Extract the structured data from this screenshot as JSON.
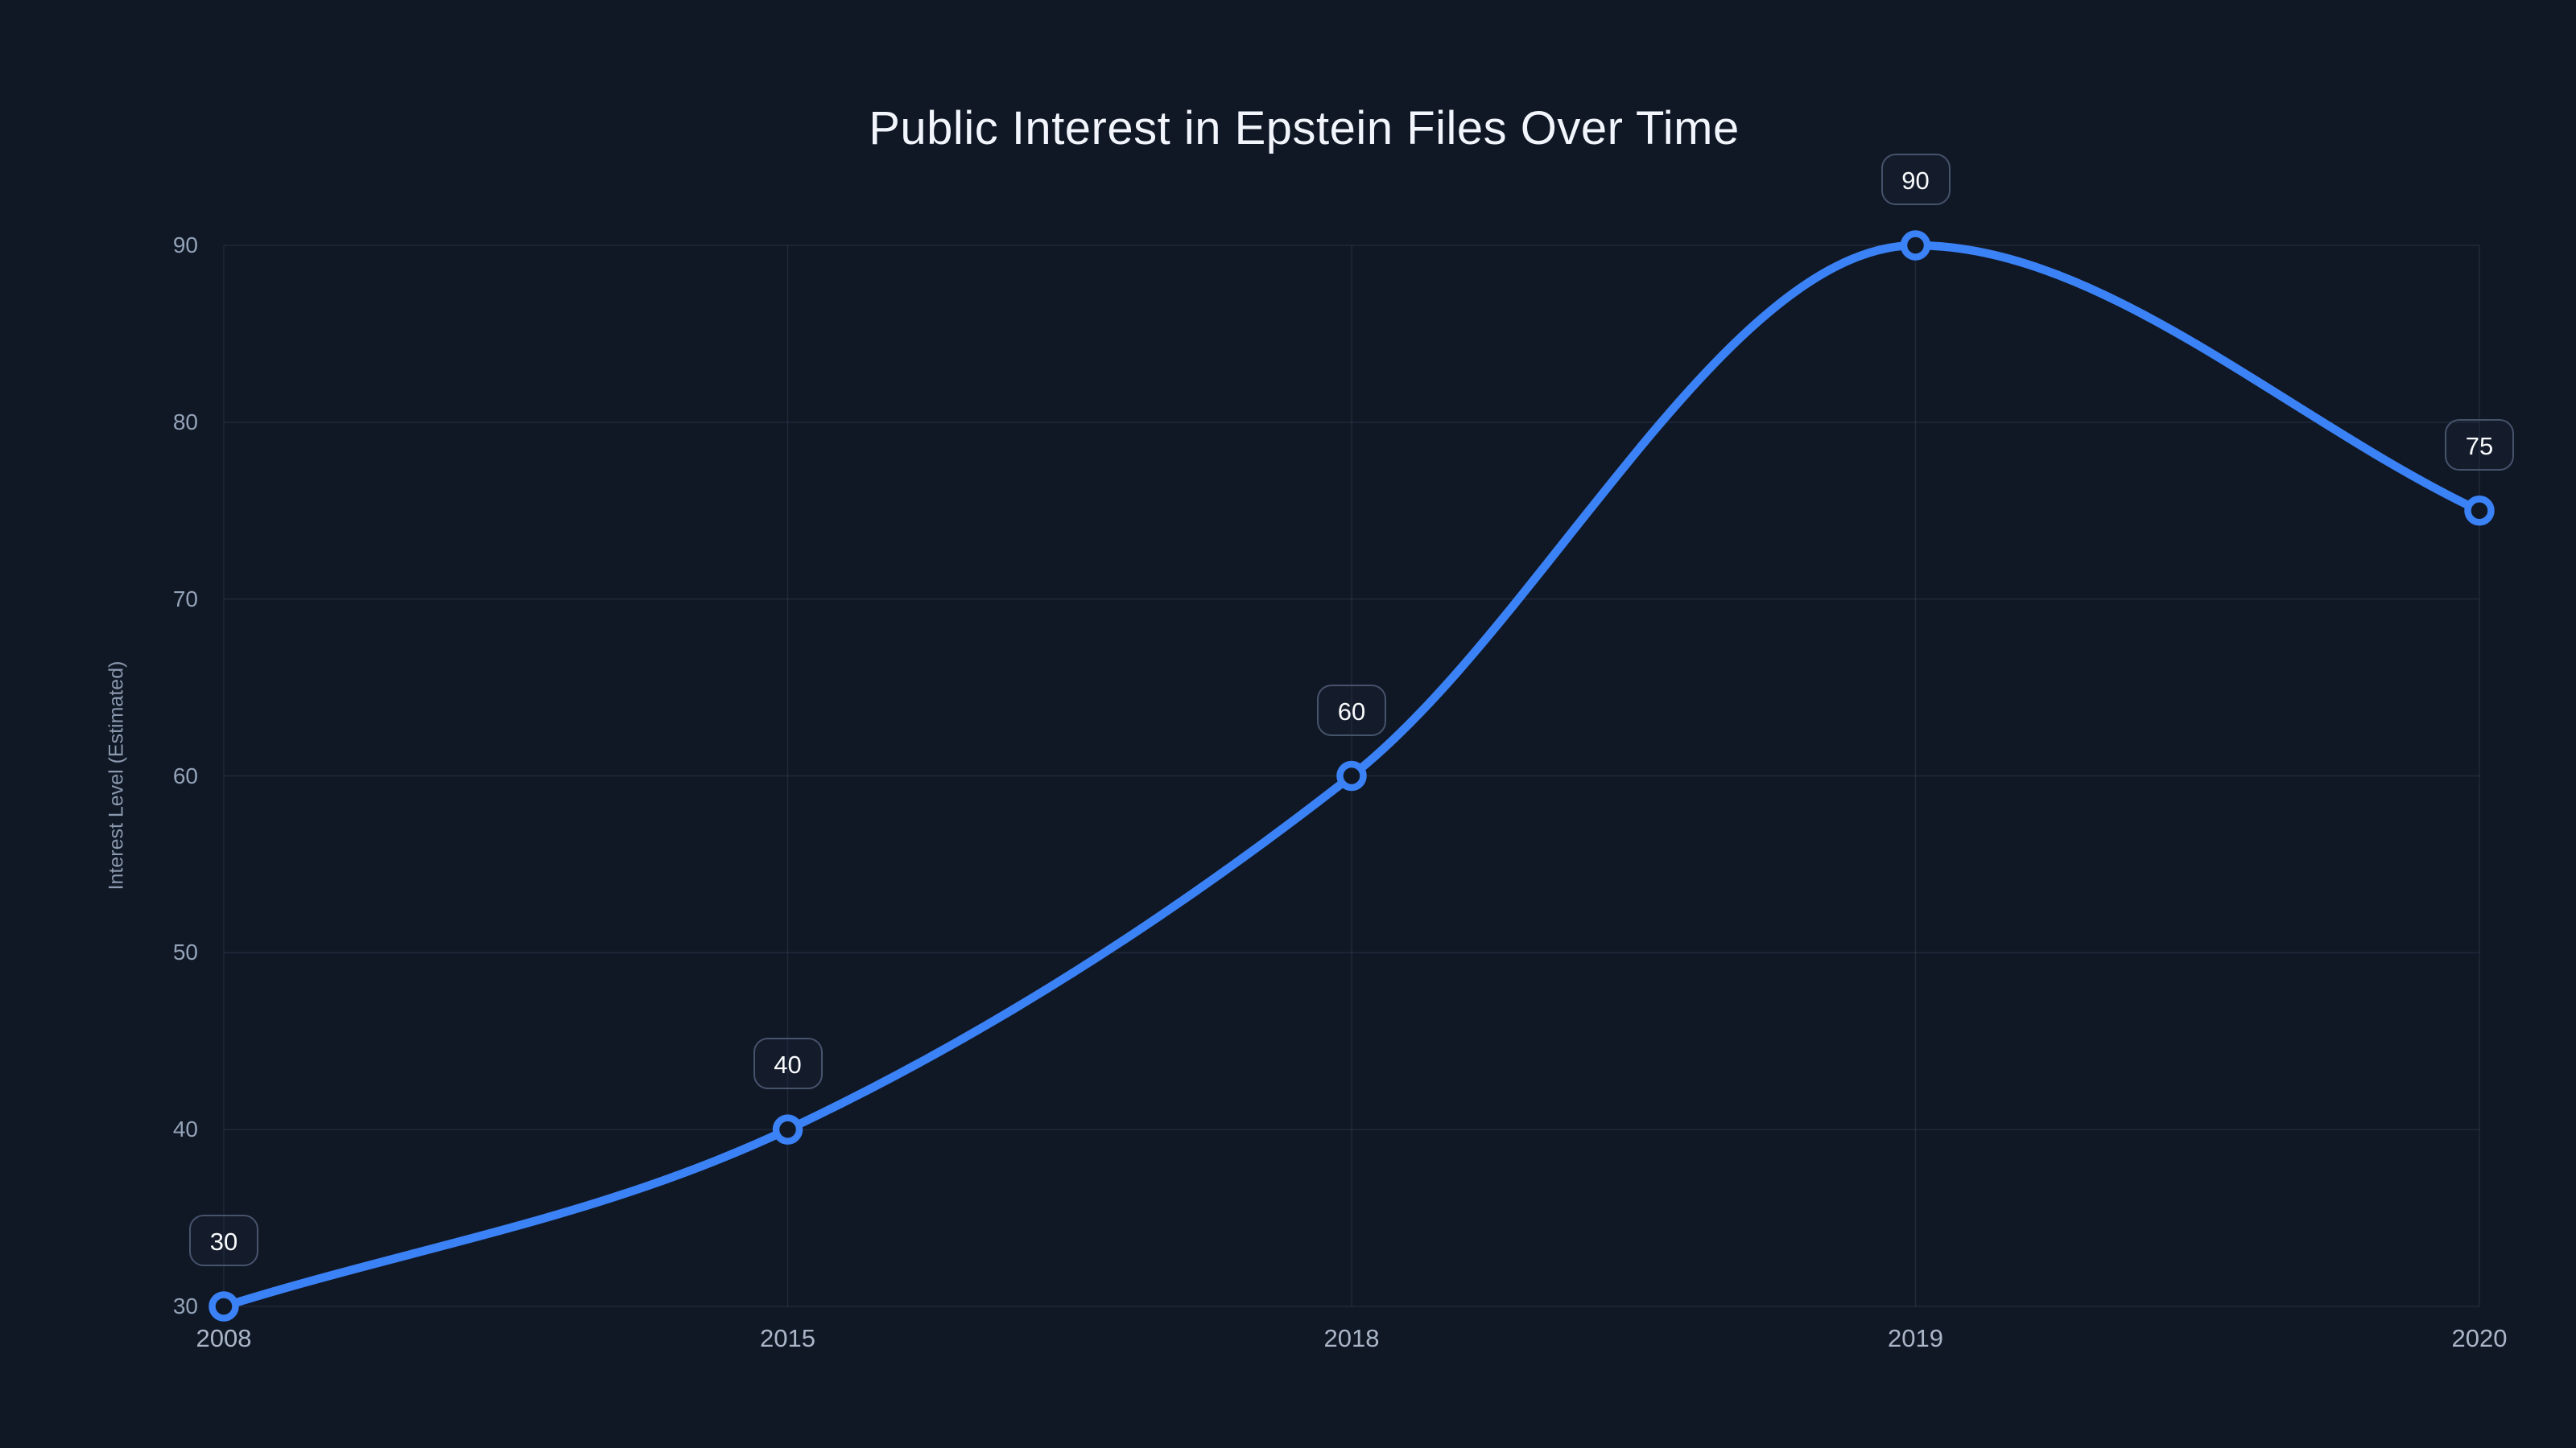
{
  "chart_data": {
    "type": "line",
    "title": "Public Interest in Epstein Files Over Time",
    "xlabel": "",
    "ylabel": "Interest Level (Estimated)",
    "categories": [
      "2008",
      "2015",
      "2018",
      "2019",
      "2020"
    ],
    "values": [
      30,
      40,
      60,
      90,
      75
    ],
    "yticks": [
      30,
      40,
      50,
      60,
      70,
      80,
      90
    ],
    "ylim": [
      30,
      90
    ],
    "grid": true,
    "legend_position": "none",
    "smooth": "monotone",
    "point_labels": [
      "30",
      "40",
      "60",
      "90",
      "75"
    ],
    "colors": {
      "background": "#101826",
      "line": "#3b82f6",
      "gridline": "rgba(148, 163, 184, 0.13)",
      "tick_text": "#94a3b8",
      "title_text": "#f2f6fc",
      "label_box_border": "#46536b",
      "label_text": "#f8fafc",
      "marker_fill": "#101826"
    }
  }
}
